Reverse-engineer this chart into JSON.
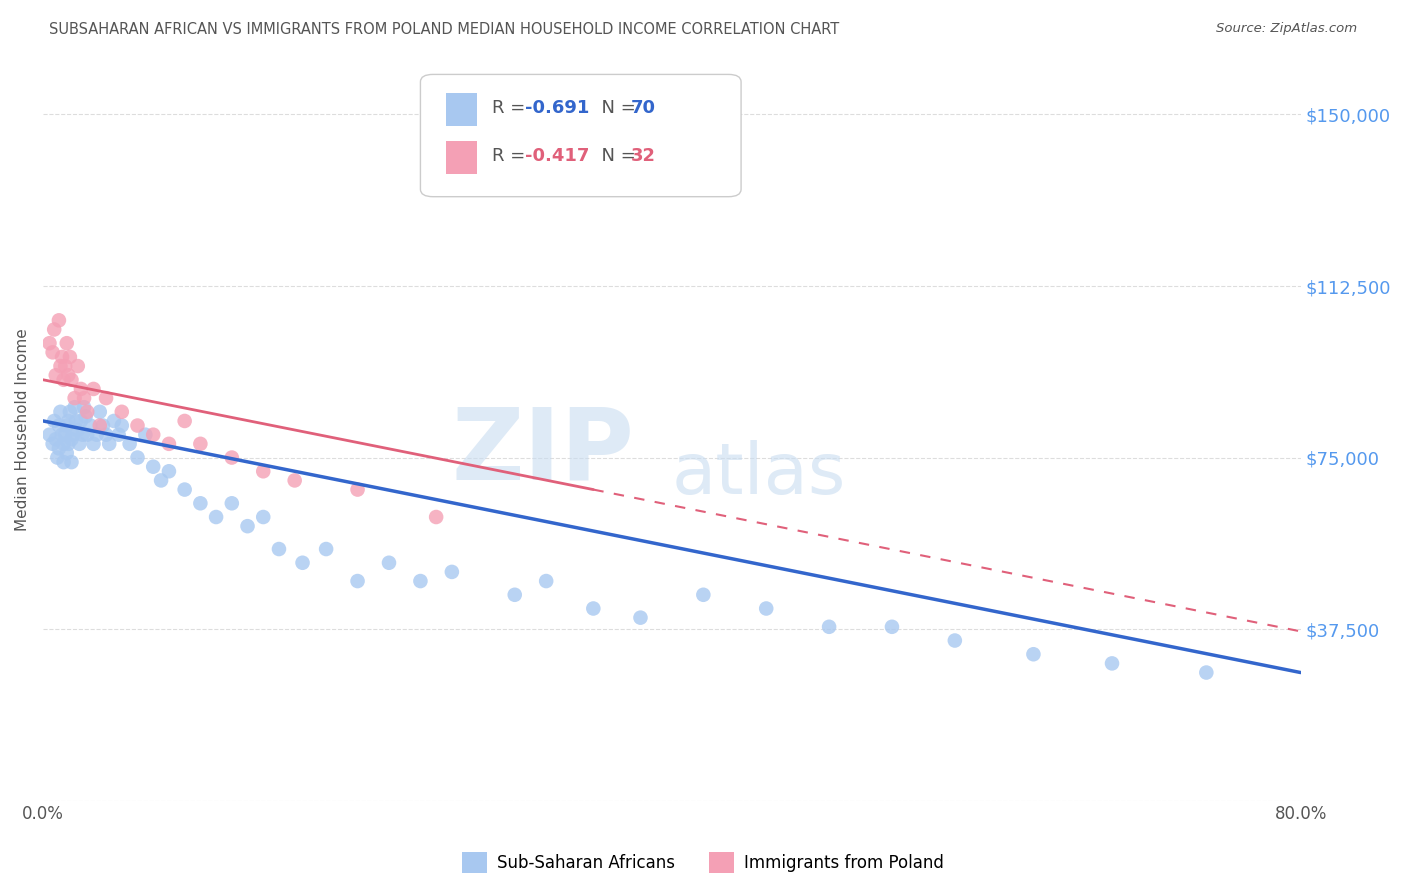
{
  "title": "SUBSAHARAN AFRICAN VS IMMIGRANTS FROM POLAND MEDIAN HOUSEHOLD INCOME CORRELATION CHART",
  "source": "Source: ZipAtlas.com",
  "ylabel": "Median Household Income",
  "yticks": [
    0,
    37500,
    75000,
    112500,
    150000
  ],
  "ytick_labels": [
    "",
    "$37,500",
    "$75,000",
    "$112,500",
    "$150,000"
  ],
  "xlim": [
    0.0,
    0.8
  ],
  "ylim": [
    0,
    162000
  ],
  "legend_r_blue": "-0.691",
  "legend_n_blue": "70",
  "legend_r_pink": "-0.417",
  "legend_n_pink": "32",
  "label_blue": "Sub-Saharan Africans",
  "label_pink": "Immigrants from Poland",
  "color_blue": "#A8C8F0",
  "color_pink": "#F4A0B5",
  "line_color_blue": "#3366CC",
  "line_color_pink": "#E0607A",
  "title_color": "#555555",
  "tick_color_right": "#5599EE",
  "background_color": "#FFFFFF",
  "grid_color": "#DDDDDD",
  "watermark_zip": "ZIP",
  "watermark_atlas": "atlas",
  "blue_x": [
    0.004,
    0.006,
    0.007,
    0.008,
    0.009,
    0.01,
    0.01,
    0.011,
    0.012,
    0.013,
    0.013,
    0.014,
    0.015,
    0.015,
    0.016,
    0.016,
    0.017,
    0.018,
    0.018,
    0.019,
    0.02,
    0.021,
    0.022,
    0.023,
    0.024,
    0.025,
    0.026,
    0.027,
    0.028,
    0.03,
    0.032,
    0.034,
    0.036,
    0.038,
    0.04,
    0.042,
    0.045,
    0.048,
    0.05,
    0.055,
    0.06,
    0.065,
    0.07,
    0.075,
    0.08,
    0.09,
    0.1,
    0.11,
    0.12,
    0.13,
    0.14,
    0.15,
    0.165,
    0.18,
    0.2,
    0.22,
    0.24,
    0.26,
    0.3,
    0.32,
    0.35,
    0.38,
    0.42,
    0.46,
    0.5,
    0.54,
    0.58,
    0.63,
    0.68,
    0.74
  ],
  "blue_y": [
    80000,
    78000,
    83000,
    79000,
    75000,
    82000,
    77000,
    85000,
    80000,
    78000,
    74000,
    80000,
    82000,
    76000,
    83000,
    78000,
    85000,
    79000,
    74000,
    80000,
    86000,
    83000,
    81000,
    78000,
    83000,
    80000,
    86000,
    84000,
    80000,
    82000,
    78000,
    80000,
    85000,
    82000,
    80000,
    78000,
    83000,
    80000,
    82000,
    78000,
    75000,
    80000,
    73000,
    70000,
    72000,
    68000,
    65000,
    62000,
    65000,
    60000,
    62000,
    55000,
    52000,
    55000,
    48000,
    52000,
    48000,
    50000,
    45000,
    48000,
    42000,
    40000,
    45000,
    42000,
    38000,
    38000,
    35000,
    32000,
    30000,
    28000
  ],
  "pink_x": [
    0.004,
    0.006,
    0.007,
    0.008,
    0.01,
    0.011,
    0.012,
    0.013,
    0.014,
    0.015,
    0.016,
    0.017,
    0.018,
    0.02,
    0.022,
    0.024,
    0.026,
    0.028,
    0.032,
    0.036,
    0.04,
    0.05,
    0.06,
    0.07,
    0.08,
    0.09,
    0.1,
    0.12,
    0.14,
    0.16,
    0.2,
    0.25
  ],
  "pink_y": [
    100000,
    98000,
    103000,
    93000,
    105000,
    95000,
    97000,
    92000,
    95000,
    100000,
    93000,
    97000,
    92000,
    88000,
    95000,
    90000,
    88000,
    85000,
    90000,
    82000,
    88000,
    85000,
    82000,
    80000,
    78000,
    83000,
    78000,
    75000,
    72000,
    70000,
    68000,
    62000
  ],
  "blue_line_x0": 0.0,
  "blue_line_y0": 83000,
  "blue_line_x1": 0.8,
  "blue_line_y1": 28000,
  "pink_line_x0": 0.0,
  "pink_line_y0": 92000,
  "pink_line_x1": 0.35,
  "pink_line_y1": 68000,
  "pink_line_dash_x0": 0.35,
  "pink_line_dash_y0": 68000,
  "pink_line_dash_x1": 0.8,
  "pink_line_dash_y1": 37000
}
